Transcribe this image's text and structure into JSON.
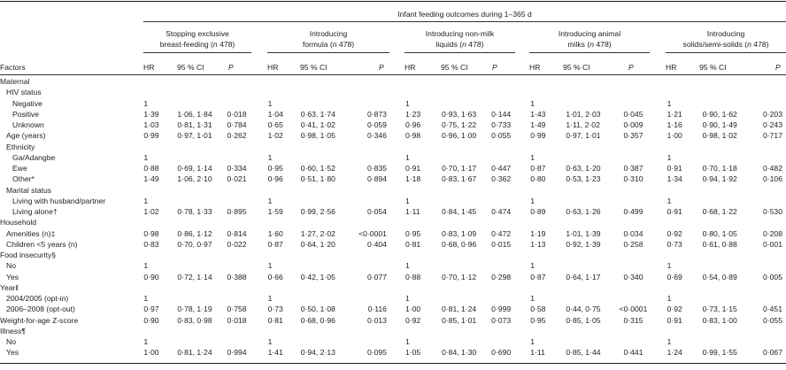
{
  "header": {
    "spanner": "Infant feeding outcomes during 1–365 d",
    "factors_label": "Factors",
    "col_labels": {
      "hr": "HR",
      "ci": "95 % CI",
      "p": "P"
    },
    "groups": [
      {
        "line1": "Stopping exclusive",
        "line2_pre": "breast-feeding (",
        "n_label": "n",
        "n_value": " 478)"
      },
      {
        "line1": "Introducing",
        "line2_pre": "formula (",
        "n_label": "n",
        "n_value": " 478)"
      },
      {
        "line1": "Introducing non-milk",
        "line2_pre": "liquids (",
        "n_label": "n",
        "n_value": " 478)"
      },
      {
        "line1": "Introducing animal",
        "line2_pre": "milks (",
        "n_label": "n",
        "n_value": " 478)"
      },
      {
        "line1": "Introducing",
        "line2_pre": "solids/semi-solids (",
        "n_label": "n",
        "n_value": " 478)"
      }
    ]
  },
  "rows": [
    {
      "label": "Maternal",
      "indent": 0,
      "cells": null
    },
    {
      "label": "HIV status",
      "indent": 1,
      "cells": null
    },
    {
      "label": "Negative",
      "indent": 2,
      "cells": [
        [
          "1",
          "",
          ""
        ],
        [
          "1",
          "",
          ""
        ],
        [
          "1",
          "",
          ""
        ],
        [
          "1",
          "",
          ""
        ],
        [
          "1",
          "",
          ""
        ]
      ]
    },
    {
      "label": "Positive",
      "indent": 2,
      "cells": [
        [
          "1·39",
          "1·06, 1·84",
          "0·018"
        ],
        [
          "1·04",
          "0·63, 1·74",
          "0·873"
        ],
        [
          "1·23",
          "0·93, 1·63",
          "0·144"
        ],
        [
          "1·43",
          "1·01, 2·03",
          "0·045"
        ],
        [
          "1·21",
          "0·90, 1·62",
          "0·203"
        ]
      ]
    },
    {
      "label": "Unknown",
      "indent": 2,
      "cells": [
        [
          "1·03",
          "0·81, 1·31",
          "0·784"
        ],
        [
          "0·65",
          "0·41, 1·02",
          "0·059"
        ],
        [
          "0·96",
          "0·75, 1·22",
          "0·733"
        ],
        [
          "1·49",
          "1·11, 2·02",
          "0·009"
        ],
        [
          "1·16",
          "0·90, 1·49",
          "0·243"
        ]
      ]
    },
    {
      "label": "Age (years)",
      "indent": 1,
      "cells": [
        [
          "0·99",
          "0·97, 1·01",
          "0·262"
        ],
        [
          "1·02",
          "0·98, 1·05",
          "0·346"
        ],
        [
          "0·98",
          "0·96, 1·00",
          "0·055"
        ],
        [
          "0·99",
          "0·97, 1·01",
          "0·357"
        ],
        [
          "1·00",
          "0·98, 1·02",
          "0·717"
        ]
      ]
    },
    {
      "label": "Ethnicity",
      "indent": 1,
      "cells": null
    },
    {
      "label": "Ga/Adangbe",
      "indent": 2,
      "cells": [
        [
          "1",
          "",
          ""
        ],
        [
          "1",
          "",
          ""
        ],
        [
          "1",
          "",
          ""
        ],
        [
          "1",
          "",
          ""
        ],
        [
          "1",
          "",
          ""
        ]
      ]
    },
    {
      "label": "Ewe",
      "indent": 2,
      "cells": [
        [
          "0·88",
          "0·69, 1·14",
          "0·334"
        ],
        [
          "0·95",
          "0·60, 1·52",
          "0·835"
        ],
        [
          "0·91",
          "0·70, 1·17",
          "0·447"
        ],
        [
          "0·87",
          "0·63, 1·20",
          "0·387"
        ],
        [
          "0·91",
          "0·70, 1·18",
          "0·482"
        ]
      ]
    },
    {
      "label": "Other*",
      "indent": 2,
      "cells": [
        [
          "1·49",
          "1·06, 2·10",
          "0·021"
        ],
        [
          "0·96",
          "0·51, 1·80",
          "0·894"
        ],
        [
          "1·18",
          "0·83, 1·67",
          "0·362"
        ],
        [
          "0·80",
          "0·53, 1·23",
          "0·310"
        ],
        [
          "1·34",
          "0·94, 1·92",
          "0·106"
        ]
      ]
    },
    {
      "label": "Marital status",
      "indent": 1,
      "cells": null
    },
    {
      "label": "Living with husband/partner",
      "indent": 2,
      "cells": [
        [
          "1",
          "",
          ""
        ],
        [
          "1",
          "",
          ""
        ],
        [
          "1",
          "",
          ""
        ],
        [
          "1",
          "",
          ""
        ],
        [
          "1",
          "",
          ""
        ]
      ]
    },
    {
      "label": "Living alone†",
      "indent": 2,
      "cells": [
        [
          "1·02",
          "0·78, 1·33",
          "0·895"
        ],
        [
          "1·59",
          "0·99, 2·56",
          "0·054"
        ],
        [
          "1·11",
          "0·84, 1·45",
          "0·474"
        ],
        [
          "0·89",
          "0·63, 1·26",
          "0·499"
        ],
        [
          "0·91",
          "0·68, 1·22",
          "0·530"
        ]
      ]
    },
    {
      "label": "Household",
      "indent": 0,
      "cells": null
    },
    {
      "label": "Amenities (n)‡",
      "indent": 1,
      "cells": [
        [
          "0·98",
          "0·86, 1·12",
          "0·814"
        ],
        [
          "1·60",
          "1·27, 2·02",
          "<0·0001"
        ],
        [
          "0·95",
          "0·83, 1·09",
          "0·472"
        ],
        [
          "1·19",
          "1·01, 1·39",
          "0·034"
        ],
        [
          "0·92",
          "0·80, 1·05",
          "0·208"
        ]
      ]
    },
    {
      "label": "Children <5 years (n)",
      "indent": 1,
      "cells": [
        [
          "0·83",
          "0·70, 0·97",
          "0·022"
        ],
        [
          "0·87",
          "0·64, 1·20",
          "0·404"
        ],
        [
          "0·81",
          "0·68, 0·96",
          "0·015"
        ],
        [
          "1·13",
          "0·92, 1·39",
          "0·258"
        ],
        [
          "0·73",
          "0·61, 0·88",
          "0·001"
        ]
      ]
    },
    {
      "label": "Food insecurity§",
      "indent": 0,
      "cells": null
    },
    {
      "label": "No",
      "indent": 1,
      "cells": [
        [
          "1",
          "",
          ""
        ],
        [
          "1",
          "",
          ""
        ],
        [
          "1",
          "",
          ""
        ],
        [
          "1",
          "",
          ""
        ],
        [
          "1",
          "",
          ""
        ]
      ]
    },
    {
      "label": "Yes",
      "indent": 1,
      "cells": [
        [
          "0·90",
          "0·72, 1·14",
          "0·388"
        ],
        [
          "0·66",
          "0·42, 1·05",
          "0·077"
        ],
        [
          "0·88",
          "0·70, 1·12",
          "0·298"
        ],
        [
          "0·87",
          "0·64, 1·17",
          "0·340"
        ],
        [
          "0·69",
          "0·54, 0·89",
          "0·005"
        ]
      ]
    },
    {
      "label": "Year‖",
      "indent": 0,
      "cells": null
    },
    {
      "label": "2004/2005 (opt-in)",
      "indent": 1,
      "cells": [
        [
          "1",
          "",
          ""
        ],
        [
          "1",
          "",
          ""
        ],
        [
          "1",
          "",
          ""
        ],
        [
          "1",
          "",
          ""
        ],
        [
          "1",
          "",
          ""
        ]
      ]
    },
    {
      "label": "2006–2008 (opt-out)",
      "indent": 1,
      "cells": [
        [
          "0·97",
          "0·78, 1·19",
          "0·758"
        ],
        [
          "0·73",
          "0·50, 1·08",
          "0·116"
        ],
        [
          "1·00",
          "0·81, 1·24",
          "0·999"
        ],
        [
          "0·58",
          "0·44, 0·75",
          "<0·0001"
        ],
        [
          "0·92",
          "0·73, 1·15",
          "0·451"
        ]
      ]
    },
    {
      "label": "Weight-for-age Z-score",
      "indent": 0,
      "cells": [
        [
          "0·90",
          "0·83, 0·98",
          "0·018"
        ],
        [
          "0·81",
          "0·68, 0·96",
          "0·013"
        ],
        [
          "0·92",
          "0·85, 1·01",
          "0·073"
        ],
        [
          "0·95",
          "0·85, 1·05",
          "0·315"
        ],
        [
          "0·91",
          "0·83, 1·00",
          "0·055"
        ]
      ]
    },
    {
      "label": "Illness¶",
      "indent": 0,
      "cells": null
    },
    {
      "label": "No",
      "indent": 1,
      "cells": [
        [
          "1",
          "",
          ""
        ],
        [
          "1",
          "",
          ""
        ],
        [
          "1",
          "",
          ""
        ],
        [
          "1",
          "",
          ""
        ],
        [
          "1",
          "",
          ""
        ]
      ]
    },
    {
      "label": "Yes",
      "indent": 1,
      "cells": [
        [
          "1·00",
          "0·81, 1·24",
          "0·994"
        ],
        [
          "1·41",
          "0·94, 2·13",
          "0·095"
        ],
        [
          "1·05",
          "0·84, 1·30",
          "0·690"
        ],
        [
          "1·11",
          "0·85, 1·44",
          "0·441"
        ],
        [
          "1·24",
          "0·99, 1·55",
          "0·067"
        ]
      ]
    }
  ]
}
